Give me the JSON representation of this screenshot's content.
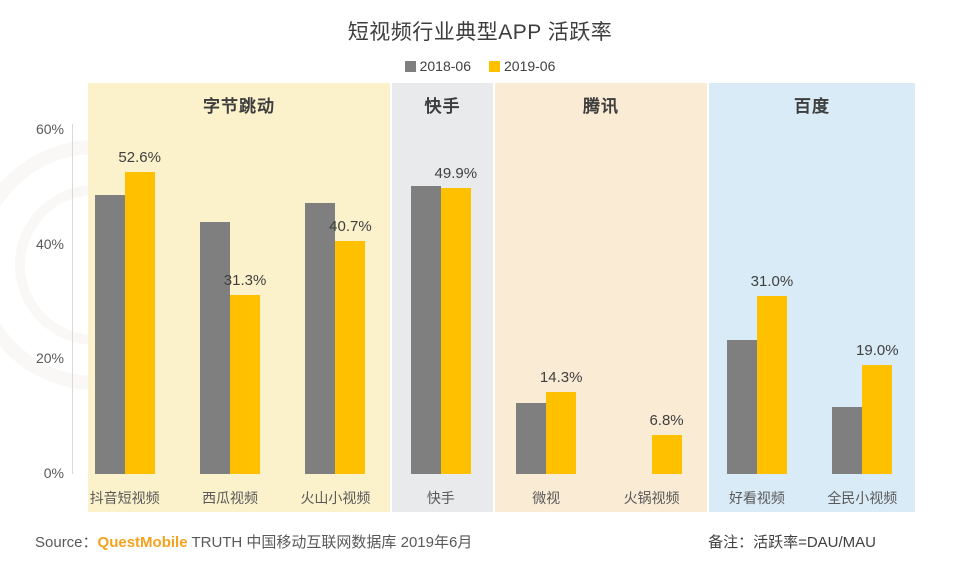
{
  "title": "短视频行业典型APP 活跃率",
  "legend": [
    {
      "label": "2018-06",
      "color": "#7f7f7f"
    },
    {
      "label": "2019-06",
      "color": "#ffc000"
    }
  ],
  "footer": {
    "source_prefix": "Source：",
    "source_brand": "QuestMobile",
    "source_rest": " TRUTH 中国移动互联网数据库 2019年6月",
    "note": "备注：活跃率=DAU/MAU",
    "brand_color": "#f5a21d"
  },
  "chart_data": {
    "type": "bar",
    "title": "短视频行业典型APP 活跃率",
    "categories": [
      "抖音短视频",
      "西瓜视频",
      "火山小视频",
      "快手",
      "微视",
      "火锅视频",
      "好看视频",
      "全民小视频"
    ],
    "series": [
      {
        "name": "2018-06",
        "color": "#7f7f7f",
        "values": [
          48.7,
          44.0,
          47.2,
          50.2,
          12.3,
          null,
          23.3,
          11.7
        ],
        "labels_shown": false
      },
      {
        "name": "2019-06",
        "color": "#ffc000",
        "values": [
          52.6,
          31.3,
          40.7,
          49.9,
          14.3,
          6.8,
          31.0,
          19.0
        ],
        "labels_shown": true
      }
    ],
    "value_labels": [
      "52.6%",
      "31.3%",
      "40.7%",
      "49.9%",
      "14.3%",
      "6.8%",
      "31.0%",
      "19.0%"
    ],
    "groups": [
      {
        "label": "字节跳动",
        "category_indexes": [
          0,
          1,
          2
        ],
        "bg": "#fbf1cb"
      },
      {
        "label": "快手",
        "category_indexes": [
          3
        ],
        "bg": "#e8eaeb"
      },
      {
        "label": "腾讯",
        "category_indexes": [
          4,
          5
        ],
        "bg": "#faebd5"
      },
      {
        "label": "百度",
        "category_indexes": [
          6,
          7
        ],
        "bg": "#d9ebf7"
      }
    ],
    "y_axis": {
      "tick_labels": [
        "0%",
        "20%",
        "40%",
        "60%"
      ],
      "tick_values": [
        0,
        20,
        40,
        60
      ],
      "min": 0,
      "max": 60,
      "unit": "%"
    },
    "grid": false,
    "legend_position": "top",
    "note": "活跃率=DAU/MAU"
  }
}
